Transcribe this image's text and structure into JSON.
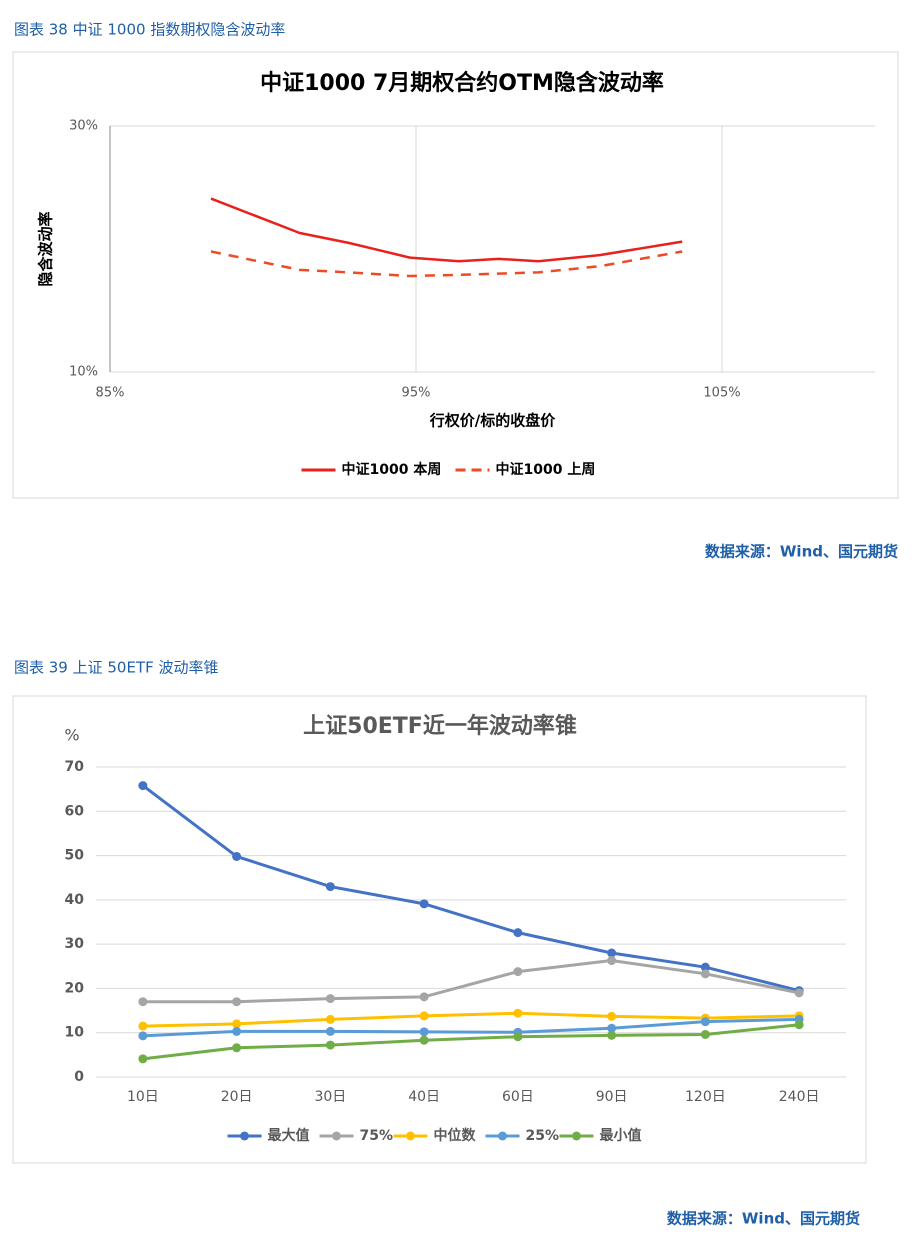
{
  "chart_data": [
    {
      "type": "line",
      "caption": "图表 38  中证 1000 指数期权隐含波动率",
      "source": "数据来源：Wind、国元期货",
      "title": "中证1000  7月期权合约OTM隐含波动率",
      "y_label": "隐含波动率",
      "x_label": "行权价/标的收盘价",
      "x": [
        88.3,
        91.2,
        92.8,
        94.8,
        96.4,
        97.7,
        99.0,
        101.0,
        103.7
      ],
      "xlim": [
        85,
        110
      ],
      "xticks": [
        {
          "value": 85,
          "label": "85%"
        },
        {
          "value": 95,
          "label": "95%"
        },
        {
          "value": 105,
          "label": "105%"
        }
      ],
      "ylim": [
        10,
        30
      ],
      "yticks": [
        {
          "value": 10,
          "label": "10%"
        },
        {
          "value": 30,
          "label": "30%"
        }
      ],
      "grid": true,
      "legend": "bottom",
      "series": [
        {
          "name": "中证1000  本周",
          "color": "#e8211c",
          "line_style": "solid",
          "values": [
            24.1,
            21.3,
            20.5,
            19.3,
            19.0,
            19.2,
            19.0,
            19.5,
            20.6
          ]
        },
        {
          "name": "中证1000  上周",
          "color": "#ee4a23",
          "line_style": "dashed",
          "values": [
            19.8,
            18.3,
            18.1,
            17.8,
            17.9,
            18.0,
            18.1,
            18.6,
            19.8
          ]
        }
      ]
    },
    {
      "type": "line",
      "caption": "图表 39  上证 50ETF 波动率锥",
      "source": "数据来源：Wind、国元期货",
      "title": "上证50ETF近一年波动率锥",
      "y_label": "%",
      "categories": [
        "10日",
        "20日",
        "30日",
        "40日",
        "60日",
        "90日",
        "120日",
        "240日"
      ],
      "ylim": [
        0,
        70
      ],
      "yticks": [
        0,
        10,
        20,
        30,
        40,
        50,
        60,
        70
      ],
      "grid": true,
      "legend": "bottom",
      "markers": true,
      "series": [
        {
          "name": "最大值",
          "color": "#4472c4",
          "values": [
            65.8,
            49.8,
            43.0,
            39.1,
            32.6,
            28.0,
            24.8,
            19.5
          ]
        },
        {
          "name": "75%",
          "color": "#a5a5a5",
          "values": [
            17.0,
            17.0,
            17.7,
            18.1,
            23.8,
            26.3,
            23.3,
            19.0
          ]
        },
        {
          "name": "中位数",
          "color": "#ffc000",
          "values": [
            11.5,
            12.0,
            13.0,
            13.8,
            14.4,
            13.7,
            13.3,
            13.8
          ]
        },
        {
          "name": "25%",
          "color": "#5b9bd5",
          "values": [
            9.3,
            10.3,
            10.3,
            10.2,
            10.1,
            11.0,
            12.5,
            13.0
          ]
        },
        {
          "name": "最小值",
          "color": "#70ad47",
          "values": [
            4.1,
            6.6,
            7.2,
            8.3,
            9.1,
            9.4,
            9.6,
            11.8
          ]
        }
      ]
    }
  ]
}
